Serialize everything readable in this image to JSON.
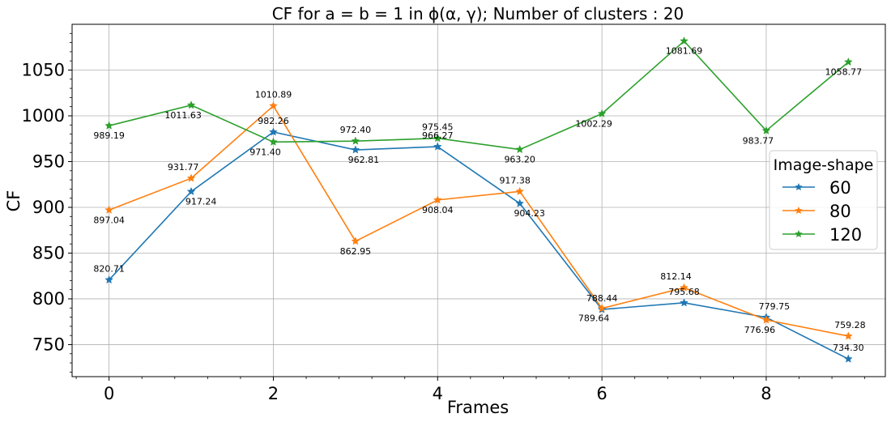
{
  "chart_data": {
    "type": "line",
    "title": "CF for a = b = 1 in ϕ(α, γ); Number of clusters : 20",
    "xlabel": "Frames",
    "ylabel": "CF",
    "x": [
      0,
      1,
      2,
      3,
      4,
      5,
      6,
      7,
      8,
      9
    ],
    "xlim": [
      -0.45,
      9.45
    ],
    "ylim": [
      715,
      1100
    ],
    "xticks": [
      "0",
      "2",
      "4",
      "6",
      "8"
    ],
    "yticks": [
      "750",
      "800",
      "850",
      "900",
      "950",
      "1000",
      "1050"
    ],
    "grid": true,
    "legend": {
      "title": "Image-shape",
      "placement": "right"
    },
    "series": [
      {
        "name": "60",
        "color": "#1f77b4",
        "values": [
          820.71,
          917.24,
          982.26,
          962.81,
          966.27,
          904.23,
          788.44,
          795.68,
          779.75,
          734.3
        ],
        "labels": [
          "820.71",
          "917.24",
          "982.26",
          "962.81",
          "966.27",
          "904.23",
          "788.44",
          "795.68",
          "779.75",
          "734.30"
        ]
      },
      {
        "name": "80",
        "color": "#ff7f0e",
        "values": [
          897.04,
          931.77,
          1010.89,
          862.95,
          908.04,
          917.38,
          789.64,
          812.14,
          776.96,
          759.28
        ],
        "labels": [
          "897.04",
          "931.77",
          "1010.89",
          "862.95",
          "908.04",
          "917.38",
          "789.64",
          "812.14",
          "776.96",
          "759.28"
        ]
      },
      {
        "name": "120",
        "color": "#2ca02c",
        "values": [
          989.19,
          1011.63,
          971.4,
          972.4,
          975.45,
          963.2,
          1002.29,
          1081.69,
          983.77,
          1058.77
        ],
        "labels": [
          "989.19",
          "1011.63",
          "971.40",
          "972.40",
          "975.45",
          "963.20",
          "1002.29",
          "1081.69",
          "983.77",
          "1058.77"
        ]
      }
    ]
  }
}
